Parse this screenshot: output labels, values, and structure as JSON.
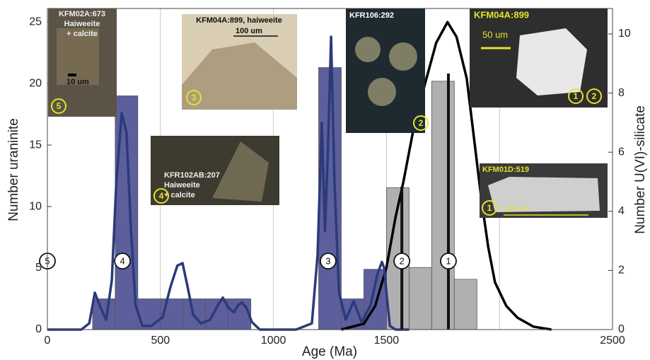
{
  "chart_data": {
    "type": "histogram",
    "xlabel": "Age (Ma)",
    "ylabel": "Number uraninite",
    "y2label": "Number U(VI)-silicate",
    "xlim": [
      0,
      2500
    ],
    "ylim": [
      0,
      26.1
    ],
    "y2lim": [
      0,
      10.86
    ],
    "xticks": [
      0,
      500,
      1000,
      1500,
      {
        "value": 2000,
        "label": null
      },
      2500
    ],
    "yticks": [
      0,
      5,
      10,
      15,
      20,
      25
    ],
    "y2ticks": [
      0,
      2,
      4,
      6,
      8,
      10
    ],
    "grid": true,
    "histograms": [
      {
        "axis": "y2",
        "color": "#b0b0b0",
        "bins": [
          1500,
          1600,
          1700,
          1800,
          1900
        ],
        "counts": [
          4.8,
          2.1,
          8.4,
          1.7
        ]
      },
      {
        "axis": "y",
        "color": "#5d5f9c",
        "bins": [
          200,
          300,
          400,
          500,
          600,
          700,
          800,
          900,
          1000,
          1100,
          1200,
          1300,
          1400,
          1500
        ],
        "counts": [
          2.5,
          19,
          2.5,
          2.5,
          2.5,
          2.5,
          2.5,
          0,
          0,
          0,
          21.3,
          2.5,
          4.9
        ]
      }
    ],
    "lines": [
      {
        "axis": "y2",
        "color": "#000000",
        "x": [
          1300,
          1400,
          1450,
          1500,
          1540,
          1575,
          1620,
          1670,
          1720,
          1770,
          1810,
          1855,
          1890,
          1920,
          1950,
          1980,
          2030,
          2080,
          2150,
          2230
        ],
        "values": [
          0,
          0.2,
          0.8,
          2.1,
          3.8,
          5.0,
          6.8,
          8.3,
          9.7,
          10.4,
          9.9,
          8.5,
          6.3,
          4.4,
          2.8,
          1.6,
          0.8,
          0.4,
          0.1,
          0
        ]
      },
      {
        "axis": "y",
        "color": "#2b3a7a",
        "x": [
          0,
          150,
          185,
          210,
          235,
          260,
          285,
          305,
          329,
          350,
          370,
          390,
          420,
          460,
          510,
          545,
          575,
          598,
          620,
          645,
          680,
          720,
          755,
          776,
          800,
          825,
          845,
          860,
          880,
          905,
          940,
          1100,
          1170,
          1195,
          1214,
          1228,
          1240,
          1255,
          1270,
          1290,
          1320,
          1355,
          1390,
          1430,
          1460,
          1480,
          1490,
          1500,
          1515,
          1540,
          1600
        ],
        "values": [
          0,
          0,
          0.5,
          3.0,
          1.8,
          0.8,
          4,
          12,
          17.6,
          16,
          8,
          2,
          0.3,
          0.3,
          1,
          3.5,
          5.2,
          5.4,
          3.5,
          1.2,
          0.5,
          0.8,
          2,
          2.6,
          1.8,
          1.4,
          2,
          2.2,
          1.8,
          0.6,
          0,
          0,
          0.5,
          6,
          16.8,
          8,
          14,
          23.8,
          12,
          3,
          0.8,
          2.3,
          0.6,
          2,
          4.5,
          5.5,
          5,
          3,
          0.3,
          0,
          0
        ]
      }
    ],
    "age_lines": [
      {
        "x": 1568,
        "y": 4.83
      },
      {
        "x": 1774,
        "y": 8.66
      }
    ],
    "annotations": [
      {
        "text": "5",
        "x": 0,
        "y": 5.57
      },
      {
        "text": "4",
        "x": 332,
        "y": 5.57
      },
      {
        "text": "3",
        "x": 1242,
        "y": 5.57
      },
      {
        "text": "2",
        "x": 1568,
        "y": 5.57
      },
      {
        "text": "1",
        "x": 1774,
        "y": 5.57
      }
    ]
  },
  "insets": [
    {
      "title": "KFM02A:673",
      "lines": [
        "Haiweeite",
        "+ calcite"
      ],
      "scale": "10 um",
      "circles": [
        "5"
      ]
    },
    {
      "title": "KFM04A:899, haiweeite",
      "scale": "100 um",
      "circles": [
        "3"
      ]
    },
    {
      "title": "KFR102AB:207",
      "lines": [
        "Haiweeite",
        "+ calcite"
      ],
      "circles": [
        "4"
      ]
    },
    {
      "title": "KFR106:292",
      "circles": [
        "2"
      ]
    },
    {
      "title": "KFM04A:899",
      "scale": "50 um",
      "circles": [
        "1",
        "2"
      ]
    },
    {
      "title": "KFM01D:519",
      "scale": "200 um",
      "circles": [
        "1"
      ]
    }
  ]
}
